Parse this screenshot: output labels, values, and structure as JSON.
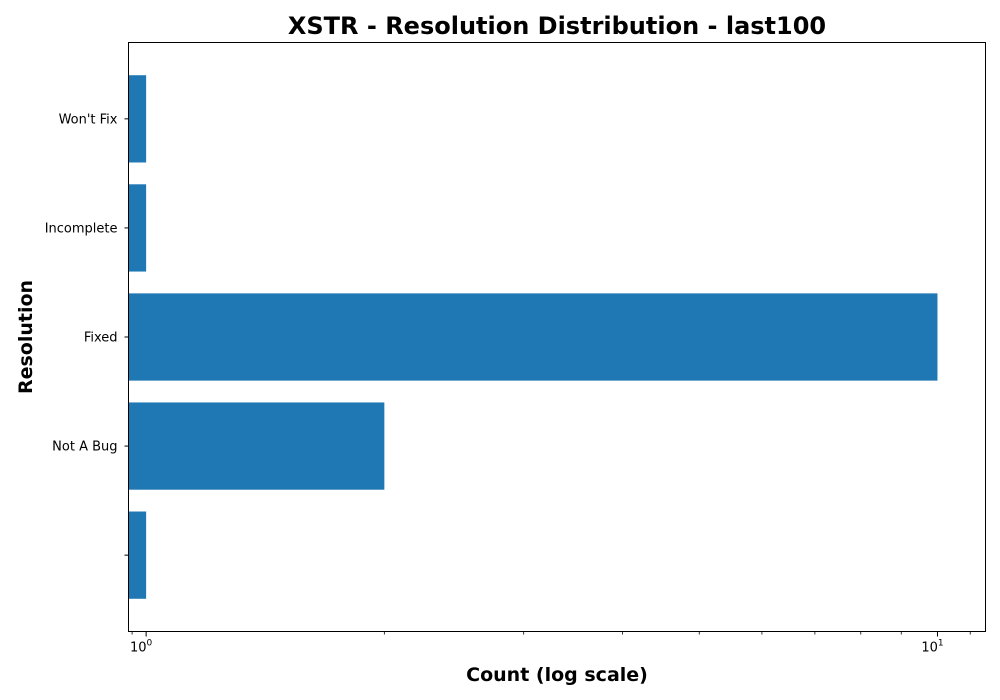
{
  "chart_data": {
    "type": "bar",
    "orientation": "horizontal",
    "title": "XSTR - Resolution Distribution - last100",
    "xlabel": "Count (log scale)",
    "ylabel": "Resolution",
    "x_scale": "log",
    "xlim": [
      0.95,
      11.5
    ],
    "categories": [
      "",
      "Not A Bug",
      "Fixed",
      "Incomplete",
      "Won't Fix"
    ],
    "values": [
      1,
      2,
      10,
      1,
      1
    ],
    "x_major_ticks": [
      {
        "value": 1,
        "base": "10",
        "exp": "0"
      },
      {
        "value": 10,
        "base": "10",
        "exp": "1"
      }
    ],
    "x_minor_ticks": [
      2,
      3,
      4,
      5,
      6,
      7,
      8,
      9
    ],
    "grid": false,
    "legend": "none",
    "bar_color": "#1f77b4"
  }
}
